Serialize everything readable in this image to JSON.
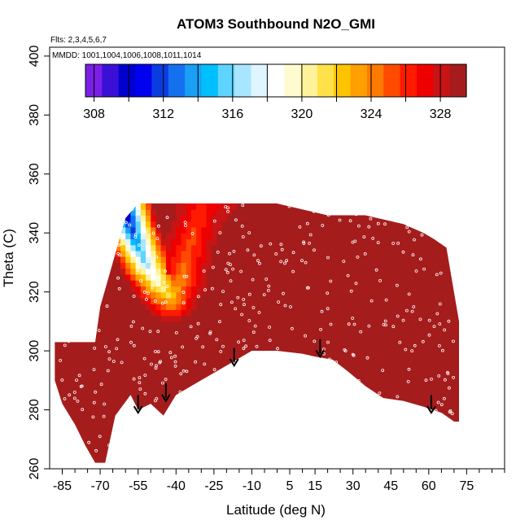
{
  "chart_data": {
    "type": "heatmap",
    "title": "ATOM3 Southbound N2O_GMI",
    "flights_note": "Flts: 2,3,4,5,6,7",
    "mmdd_note": "MMDD: 1001,1004,1006,1008,1011,1014",
    "xlabel": "Latitude (deg N)",
    "ylabel": "Theta (C)",
    "xlim": [
      -90,
      90
    ],
    "ylim": [
      260,
      403
    ],
    "x_ticks": [
      -85,
      -70,
      -55,
      -40,
      -25,
      -10,
      5,
      15,
      30,
      45,
      60,
      75
    ],
    "x_tick_labels": [
      "-85",
      "-70",
      "-55",
      "-40",
      "-25",
      "-10",
      "5",
      "15",
      "30",
      "45",
      "60",
      "75"
    ],
    "y_ticks": [
      260,
      280,
      300,
      320,
      340,
      360,
      380,
      400
    ],
    "y_tick_labels": [
      "260",
      "280",
      "300",
      "320",
      "340",
      "360",
      "380",
      "400"
    ],
    "colorbar": {
      "min": 307.5,
      "max": 329.5,
      "ticks": [
        308,
        312,
        316,
        320,
        324,
        328
      ],
      "tick_labels": [
        "308",
        "312",
        "316",
        "320",
        "324",
        "328"
      ],
      "colors": [
        "#7a1fe6",
        "#3b10d6",
        "#0000cc",
        "#0000ee",
        "#0a3de0",
        "#1570f0",
        "#1a9ff5",
        "#00bfff",
        "#5fd4ff",
        "#a8e6ff",
        "#dff5ff",
        "#ffffff",
        "#fffbd0",
        "#fff29a",
        "#ffe14a",
        "#ffc400",
        "#ff9f00",
        "#ff7a00",
        "#ff4a00",
        "#ff1a00",
        "#ee0000",
        "#c81414",
        "#a51c1c"
      ]
    },
    "data_coverage": {
      "top_boundary": [
        [
          -72,
          303
        ],
        [
          -70,
          315
        ],
        [
          -65,
          330
        ],
        [
          -60,
          345
        ],
        [
          -55,
          350
        ],
        [
          -50,
          350
        ],
        [
          -30,
          350
        ],
        [
          0,
          350
        ],
        [
          10,
          348
        ],
        [
          20,
          346
        ],
        [
          35,
          346
        ],
        [
          50,
          343
        ],
        [
          58,
          340
        ],
        [
          62,
          338
        ],
        [
          67,
          335
        ],
        [
          70,
          320
        ]
      ],
      "bottom_boundary": [
        [
          -88,
          290
        ],
        [
          -85,
          282
        ],
        [
          -80,
          275
        ],
        [
          -76,
          268
        ],
        [
          -72,
          262
        ],
        [
          -68,
          262
        ],
        [
          -66,
          270
        ],
        [
          -64,
          278
        ],
        [
          -58,
          285
        ],
        [
          -55,
          280
        ],
        [
          -50,
          282
        ],
        [
          -45,
          278
        ],
        [
          -40,
          285
        ],
        [
          -30,
          290
        ],
        [
          -20,
          295
        ],
        [
          -10,
          300
        ],
        [
          0,
          300
        ],
        [
          10,
          299
        ],
        [
          15,
          298
        ],
        [
          22,
          297
        ],
        [
          28,
          293
        ],
        [
          35,
          288
        ],
        [
          42,
          284
        ],
        [
          50,
          283
        ],
        [
          58,
          281
        ],
        [
          65,
          279
        ],
        [
          70,
          276
        ]
      ],
      "left_edge": [
        [
          -88,
          290
        ],
        [
          -88,
          303
        ]
      ],
      "right_edge": [
        [
          72,
          276
        ],
        [
          72,
          310
        ],
        [
          70,
          320
        ]
      ]
    },
    "contour_features": [
      {
        "description": "background value over most of the domain",
        "value": 329
      },
      {
        "description": "low-value band at upper left",
        "points": [
          [
            -60,
            348,
            308
          ],
          [
            -57,
            340,
            312
          ],
          [
            -52,
            330,
            316
          ],
          [
            -46,
            322,
            320
          ],
          [
            -42,
            318,
            322
          ],
          [
            -38,
            324,
            324
          ],
          [
            -35,
            335,
            325
          ],
          [
            -30,
            348,
            326
          ],
          [
            -25,
            350,
            327
          ]
        ]
      }
    ],
    "arrows": [
      {
        "x": -55,
        "theta_top": 285,
        "theta_bottom": 279
      },
      {
        "x": -44,
        "theta_top": 289,
        "theta_bottom": 283
      },
      {
        "x": -17,
        "theta_top": 301,
        "theta_bottom": 295
      },
      {
        "x": 17,
        "theta_top": 304,
        "theta_bottom": 298
      },
      {
        "x": 61,
        "theta_top": 285,
        "theta_bottom": 279
      }
    ]
  }
}
